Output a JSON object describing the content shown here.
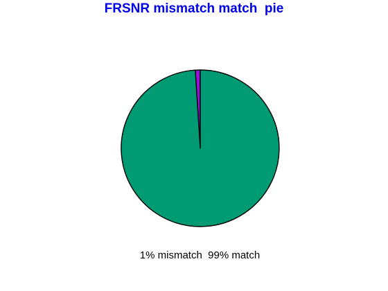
{
  "chart_data": {
    "type": "pie",
    "title": "FRSNR mismatch match  pie",
    "slices": [
      {
        "label": "mismatch",
        "value": 1,
        "color": "#9b10d8"
      },
      {
        "label": "match",
        "value": 99,
        "color": "#009b72"
      }
    ],
    "caption": "1% mismatch  99% match",
    "start": "12 o'clock",
    "direction": "counterclockwise",
    "legend": "none"
  },
  "colors": {
    "title": "#0000e6",
    "outline": "#000000",
    "background": "#ffffff"
  }
}
